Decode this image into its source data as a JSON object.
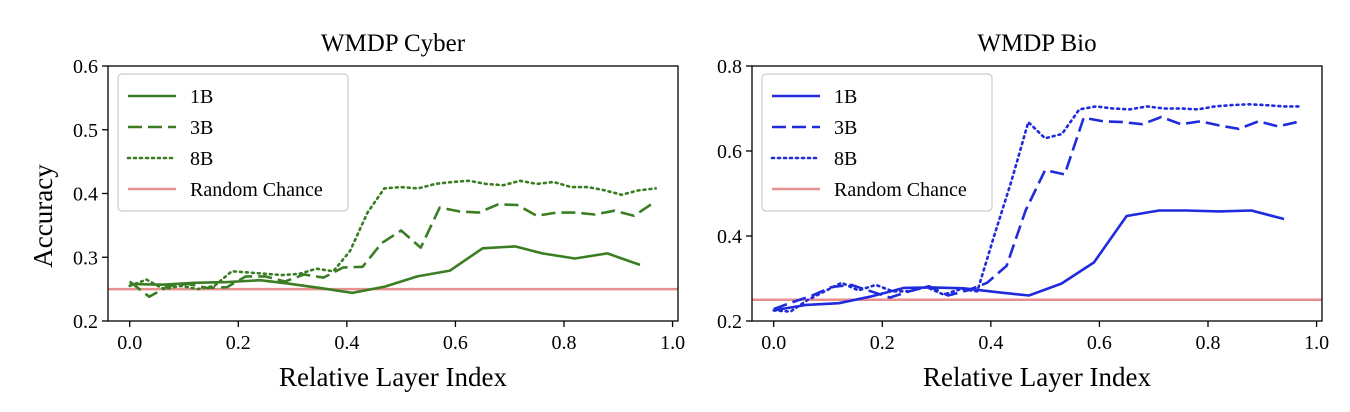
{
  "chart_data": [
    {
      "type": "line",
      "title": "WMDP Cyber",
      "xlabel": "Relative Layer Index",
      "ylabel": "Accuracy",
      "xlim": [
        -0.04,
        1.01
      ],
      "ylim": [
        0.2,
        0.6
      ],
      "xticks": [
        "0.0",
        "0.2",
        "0.4",
        "0.6",
        "0.8",
        "1.0"
      ],
      "yticks": [
        "0.2",
        "0.3",
        "0.4",
        "0.5",
        "0.6"
      ],
      "legend_position": "top-left",
      "hline": {
        "name": "Random Chance",
        "value": 0.25,
        "color": "#e8908f"
      },
      "series": [
        {
          "name": "1B",
          "style": "solid",
          "color": "#3a7d22",
          "x": [
            0,
            0.06,
            0.12,
            0.18,
            0.24,
            0.29,
            0.35,
            0.41,
            0.47,
            0.53,
            0.59,
            0.65,
            0.71,
            0.76,
            0.82,
            0.88,
            0.94
          ],
          "y": [
            0.258,
            0.257,
            0.26,
            0.261,
            0.264,
            0.259,
            0.252,
            0.244,
            0.254,
            0.27,
            0.279,
            0.314,
            0.317,
            0.306,
            0.298,
            0.306,
            0.288
          ]
        },
        {
          "name": "3B",
          "style": "dashed",
          "color": "#3a7d22",
          "x": [
            0,
            0.036,
            0.071,
            0.107,
            0.143,
            0.179,
            0.214,
            0.25,
            0.286,
            0.321,
            0.357,
            0.393,
            0.429,
            0.464,
            0.5,
            0.536,
            0.571,
            0.607,
            0.643,
            0.679,
            0.714,
            0.75,
            0.786,
            0.821,
            0.857,
            0.893,
            0.929,
            0.964
          ],
          "y": [
            0.262,
            0.238,
            0.255,
            0.258,
            0.252,
            0.253,
            0.27,
            0.27,
            0.262,
            0.273,
            0.268,
            0.284,
            0.285,
            0.322,
            0.342,
            0.315,
            0.378,
            0.372,
            0.37,
            0.383,
            0.382,
            0.365,
            0.37,
            0.37,
            0.367,
            0.373,
            0.365,
            0.385
          ]
        },
        {
          "name": "8B",
          "style": "dotted",
          "color": "#3a7d22",
          "x": [
            0,
            0.031,
            0.063,
            0.094,
            0.125,
            0.156,
            0.188,
            0.219,
            0.25,
            0.281,
            0.313,
            0.344,
            0.375,
            0.406,
            0.438,
            0.469,
            0.5,
            0.531,
            0.563,
            0.594,
            0.625,
            0.656,
            0.688,
            0.719,
            0.75,
            0.781,
            0.813,
            0.844,
            0.875,
            0.906,
            0.938,
            0.969
          ],
          "y": [
            0.255,
            0.265,
            0.25,
            0.255,
            0.25,
            0.255,
            0.278,
            0.276,
            0.274,
            0.272,
            0.274,
            0.282,
            0.278,
            0.31,
            0.37,
            0.408,
            0.41,
            0.408,
            0.415,
            0.418,
            0.42,
            0.415,
            0.413,
            0.42,
            0.415,
            0.418,
            0.41,
            0.41,
            0.405,
            0.398,
            0.405,
            0.408
          ]
        },
        {
          "name": "Random Chance",
          "style": "solid",
          "color": "#e8908f",
          "x": [],
          "y": []
        }
      ]
    },
    {
      "type": "line",
      "title": "WMDP Bio",
      "xlabel": "Relative Layer Index",
      "ylabel": "",
      "xlim": [
        -0.04,
        1.01
      ],
      "ylim": [
        0.2,
        0.8
      ],
      "xticks": [
        "0.0",
        "0.2",
        "0.4",
        "0.6",
        "0.8",
        "1.0"
      ],
      "yticks": [
        "0.2",
        "0.4",
        "0.6",
        "0.8"
      ],
      "legend_position": "top-left",
      "hline": {
        "name": "Random Chance",
        "value": 0.25,
        "color": "#e8908f"
      },
      "series": [
        {
          "name": "1B",
          "style": "solid",
          "color": "#1f2bdc",
          "x": [
            0,
            0.06,
            0.12,
            0.18,
            0.24,
            0.29,
            0.35,
            0.41,
            0.47,
            0.53,
            0.59,
            0.65,
            0.71,
            0.76,
            0.82,
            0.88,
            0.94
          ],
          "y": [
            0.225,
            0.238,
            0.242,
            0.258,
            0.278,
            0.279,
            0.277,
            0.268,
            0.26,
            0.288,
            0.338,
            0.447,
            0.46,
            0.46,
            0.458,
            0.46,
            0.44
          ]
        },
        {
          "name": "3B",
          "style": "dashed",
          "color": "#1f2bdc",
          "x": [
            0,
            0.036,
            0.071,
            0.107,
            0.143,
            0.179,
            0.214,
            0.25,
            0.286,
            0.321,
            0.357,
            0.393,
            0.429,
            0.464,
            0.5,
            0.536,
            0.571,
            0.607,
            0.643,
            0.679,
            0.714,
            0.75,
            0.786,
            0.821,
            0.857,
            0.893,
            0.929,
            0.964
          ],
          "y": [
            0.228,
            0.245,
            0.26,
            0.28,
            0.285,
            0.27,
            0.255,
            0.27,
            0.282,
            0.26,
            0.272,
            0.29,
            0.33,
            0.46,
            0.555,
            0.545,
            0.678,
            0.67,
            0.668,
            0.663,
            0.68,
            0.663,
            0.67,
            0.66,
            0.652,
            0.67,
            0.658,
            0.668
          ]
        },
        {
          "name": "8B",
          "style": "dotted",
          "color": "#1f2bdc",
          "x": [
            0,
            0.031,
            0.063,
            0.094,
            0.125,
            0.156,
            0.188,
            0.219,
            0.25,
            0.281,
            0.313,
            0.344,
            0.375,
            0.406,
            0.438,
            0.469,
            0.5,
            0.531,
            0.563,
            0.594,
            0.625,
            0.656,
            0.688,
            0.719,
            0.75,
            0.781,
            0.813,
            0.844,
            0.875,
            0.906,
            0.938,
            0.969
          ],
          "y": [
            0.225,
            0.222,
            0.25,
            0.27,
            0.29,
            0.272,
            0.285,
            0.27,
            0.27,
            0.28,
            0.262,
            0.275,
            0.27,
            0.4,
            0.53,
            0.668,
            0.63,
            0.64,
            0.698,
            0.705,
            0.7,
            0.698,
            0.705,
            0.7,
            0.7,
            0.698,
            0.705,
            0.708,
            0.71,
            0.708,
            0.705,
            0.705
          ]
        },
        {
          "name": "Random Chance",
          "style": "solid",
          "color": "#e8908f",
          "x": [],
          "y": []
        }
      ]
    }
  ]
}
